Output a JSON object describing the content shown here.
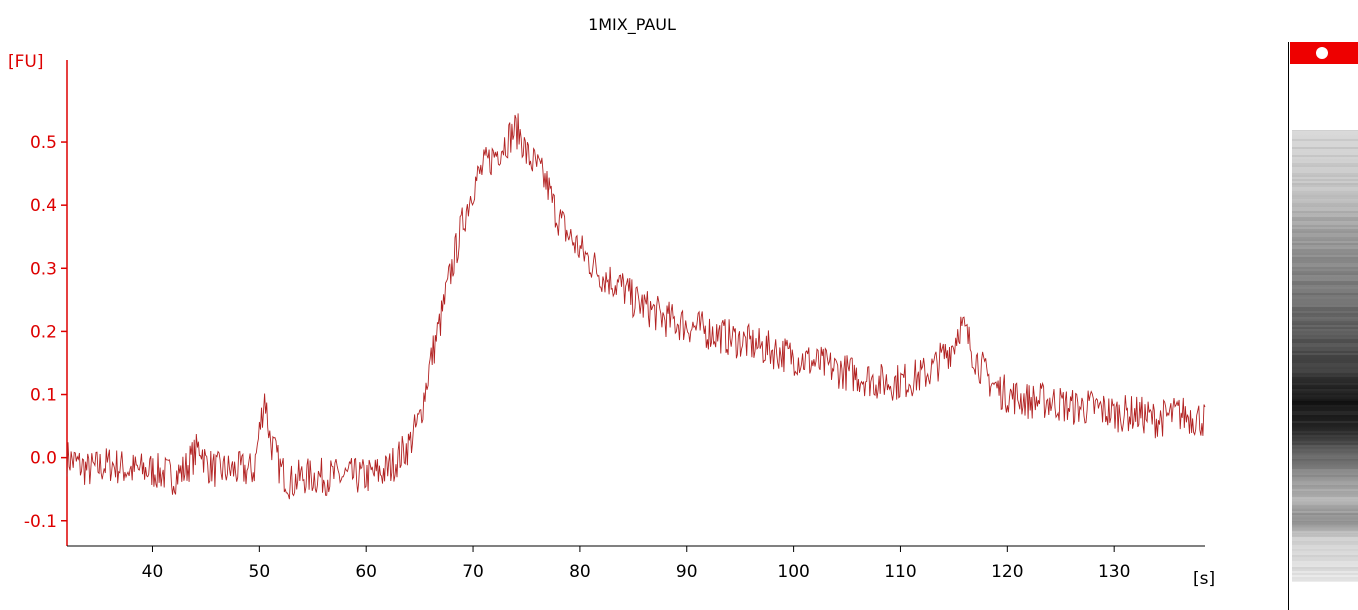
{
  "chart_data": {
    "type": "line",
    "title": "1MIX_PAUL",
    "ylabel": "[FU]",
    "xlabel": "[s]",
    "xlim": [
      32,
      138.5
    ],
    "ylim": [
      -0.14,
      0.63
    ],
    "x_ticks": [
      40,
      50,
      60,
      70,
      80,
      90,
      100,
      110,
      120,
      130
    ],
    "y_ticks": [
      -0.1,
      0.0,
      0.1,
      0.2,
      0.3,
      0.4,
      0.5
    ],
    "x_tick_labels": [
      "40",
      "50",
      "60",
      "70",
      "80",
      "90",
      "100",
      "110",
      "120",
      "130"
    ],
    "y_tick_labels": [
      "-0.1",
      "0.0",
      "0.1",
      "0.2",
      "0.3",
      "0.4",
      "0.5"
    ],
    "series": [
      {
        "color": "#b22222",
        "x": [
          32,
          34,
          36,
          38,
          40,
          42,
          43,
          44.5,
          45,
          46,
          48,
          49.5,
          50,
          50.5,
          51,
          52,
          53,
          54,
          55,
          56,
          58,
          60,
          62,
          63,
          64,
          65,
          66,
          67,
          68,
          69,
          70,
          71,
          72,
          73,
          74,
          74.5,
          75,
          76,
          77,
          77.5,
          78,
          79,
          80,
          81,
          82,
          83,
          84,
          85,
          86,
          87,
          88,
          90,
          92,
          94,
          96,
          98,
          100,
          102,
          104,
          106,
          108,
          110,
          112,
          113,
          114,
          115,
          115.5,
          116,
          117,
          118,
          119,
          120,
          122,
          124,
          126,
          128,
          130,
          132,
          134,
          136,
          138.5
        ],
        "y": [
          0.0,
          -0.02,
          -0.01,
          -0.02,
          -0.02,
          -0.03,
          -0.02,
          0.02,
          -0.01,
          -0.02,
          -0.02,
          -0.02,
          0.04,
          0.1,
          0.03,
          -0.02,
          -0.04,
          -0.03,
          -0.03,
          -0.03,
          -0.03,
          -0.03,
          -0.02,
          0.0,
          0.02,
          0.06,
          0.15,
          0.22,
          0.3,
          0.37,
          0.43,
          0.46,
          0.48,
          0.5,
          0.52,
          0.51,
          0.48,
          0.46,
          0.43,
          0.4,
          0.38,
          0.35,
          0.33,
          0.31,
          0.29,
          0.28,
          0.27,
          0.25,
          0.24,
          0.23,
          0.22,
          0.21,
          0.2,
          0.19,
          0.18,
          0.17,
          0.16,
          0.15,
          0.14,
          0.13,
          0.12,
          0.12,
          0.13,
          0.14,
          0.16,
          0.18,
          0.21,
          0.2,
          0.16,
          0.13,
          0.11,
          0.1,
          0.09,
          0.09,
          0.08,
          0.08,
          0.07,
          0.07,
          0.06,
          0.07,
          0.06
        ]
      }
    ],
    "grid": false,
    "gel_image": {
      "marker_color": "#ee0000"
    }
  }
}
